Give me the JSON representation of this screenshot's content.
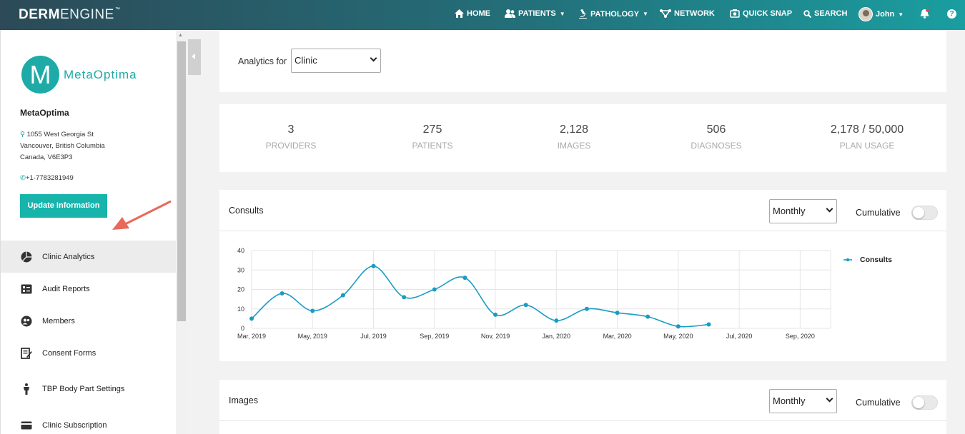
{
  "nav": {
    "brand_bold": "DERM",
    "brand_light": "ENGINE",
    "brand_tm": "™",
    "home": "HOME",
    "patients": "PATIENTS",
    "pathology": "PATHOLOGY",
    "network": "NETWORK",
    "quick_snap": "QUICK SNAP",
    "search": "SEARCH",
    "user": "John",
    "help": "?"
  },
  "sidebar": {
    "logo_letter": "M",
    "logo_text": "MetaOptima",
    "clinic_name": "MetaOptima",
    "address_line1": "1055 West Georgia St",
    "address_line2": "Vancouver, British Columbia",
    "address_line3": "Canada, V6E3P3",
    "phone": "+1-7783281949",
    "update_button": "Update Information",
    "menu": [
      {
        "label": "Clinic Analytics",
        "icon": "pie-chart-icon"
      },
      {
        "label": "Audit Reports",
        "icon": "report-icon"
      },
      {
        "label": "Members",
        "icon": "members-icon"
      },
      {
        "label": "Consent Forms",
        "icon": "form-icon"
      },
      {
        "label": "TBP Body Part Settings",
        "icon": "body-icon"
      },
      {
        "label": "Clinic Subscription",
        "icon": "card-icon"
      }
    ]
  },
  "analytics": {
    "label": "Analytics for",
    "selected": "Clinic"
  },
  "stats": [
    {
      "value": "3",
      "label": "PROVIDERS"
    },
    {
      "value": "275",
      "label": "PATIENTS"
    },
    {
      "value": "2,128",
      "label": "IMAGES"
    },
    {
      "value": "506",
      "label": "DIAGNOSES"
    },
    {
      "value": "2,178 / 50,000",
      "label": "PLAN USAGE"
    }
  ],
  "consults_panel": {
    "title": "Consults",
    "period": "Monthly",
    "cumulative_label": "Cumulative"
  },
  "images_panel": {
    "title": "Images",
    "period": "Monthly",
    "cumulative_label": "Cumulative"
  },
  "colors": {
    "accent": "#17b4ac",
    "line": "#1a9bc4",
    "arrow": "#e8685a"
  },
  "chart_data": {
    "type": "line",
    "title": "",
    "xlabel": "",
    "ylabel": "",
    "ylim": [
      0,
      40
    ],
    "yticks": [
      0,
      10,
      20,
      30,
      40
    ],
    "xticks": [
      "Mar, 2019",
      "May, 2019",
      "Jul, 2019",
      "Sep, 2019",
      "Nov, 2019",
      "Jan, 2020",
      "Mar, 2020",
      "May, 2020",
      "Jul, 2020",
      "Sep, 2020"
    ],
    "x_start": "Mar, 2019",
    "x_months": 19,
    "legend_position": "right",
    "grid": true,
    "series": [
      {
        "name": "Consults",
        "x": [
          "Mar, 2019",
          "Apr, 2019",
          "May, 2019",
          "Jun, 2019",
          "Jul, 2019",
          "Aug, 2019",
          "Sep, 2019",
          "Oct, 2019",
          "Nov, 2019",
          "Dec, 2019",
          "Jan, 2020",
          "Feb, 2020",
          "Mar, 2020",
          "Apr, 2020",
          "May, 2020",
          "Jun, 2020"
        ],
        "values": [
          5,
          18,
          9,
          17,
          32,
          16,
          20,
          26,
          7,
          12,
          4,
          10,
          8,
          6,
          1,
          2
        ]
      }
    ]
  }
}
